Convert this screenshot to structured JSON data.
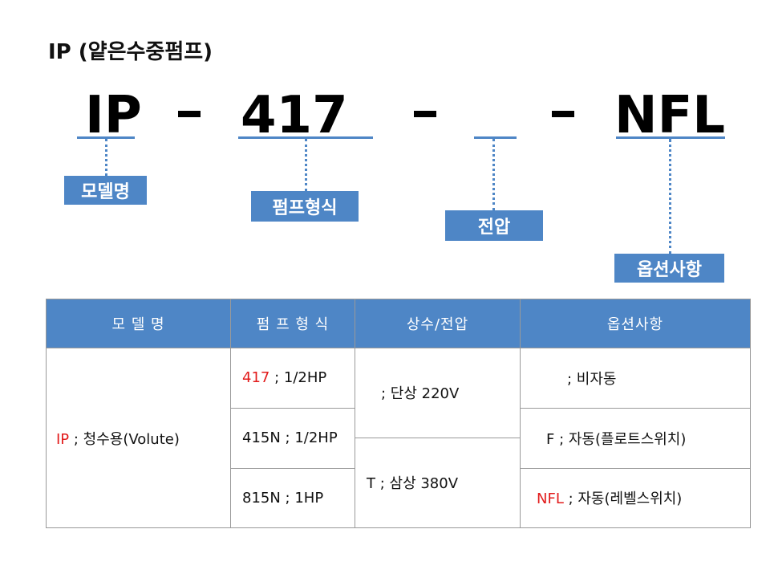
{
  "title": "IP (얕은수중펌프)",
  "code": {
    "part1": "IP",
    "part2": "417",
    "part4": "NFL"
  },
  "labels": {
    "model": "모델명",
    "pump_type": "펌프형식",
    "voltage": "전압",
    "options": "옵션사항"
  },
  "table": {
    "headers": [
      "모 델 명",
      "펌 프 형 식",
      "상수/전압",
      "옵션사항"
    ],
    "model_code": "IP",
    "model_desc": " ; 청수용(Volute)",
    "pump_rows": [
      {
        "code": "417",
        "desc": " ; 1/2HP"
      },
      {
        "code": "415N",
        "desc": " ; 1/2HP"
      },
      {
        "code": "815N",
        "desc": " ; 1HP"
      }
    ],
    "voltage_rows": [
      {
        "text": "; 단상 220V"
      },
      {
        "text": "T ; 삼상 380V"
      }
    ],
    "option_rows": [
      {
        "code": "",
        "desc": "; 비자동"
      },
      {
        "code": "F",
        "desc": " ; 자동(플로트스위치)"
      },
      {
        "code": "NFL",
        "desc": " ; 자동(레벨스위치)"
      }
    ]
  },
  "colors": {
    "accent": "#4e86c6",
    "highlight": "#e21b1b"
  }
}
